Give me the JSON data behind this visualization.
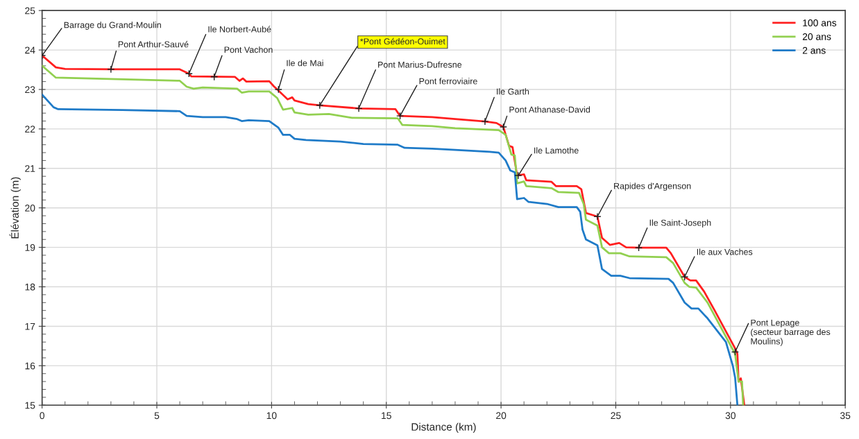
{
  "chart_data": {
    "type": "line",
    "xlabel": "Distance (km)",
    "ylabel": "Élévation (m)",
    "xlim": [
      0,
      35
    ],
    "xticks": [
      0,
      5,
      10,
      15,
      20,
      25,
      30,
      35
    ],
    "ylim": [
      15,
      25
    ],
    "yticks": [
      15,
      16,
      17,
      18,
      19,
      20,
      21,
      22,
      23,
      24,
      25
    ],
    "grid": true,
    "legend": "top right",
    "marker": "none",
    "line_style": "solid",
    "series": [
      {
        "name": "100 ans",
        "color": "#ff1f1f",
        "x": [
          0,
          0.6,
          1.0,
          3.0,
          6.0,
          6.4,
          6.5,
          8.4,
          8.6,
          8.75,
          8.9,
          9.9,
          10.1,
          10.25,
          10.7,
          10.9,
          11.0,
          11.6,
          12.1,
          13.8,
          15.4,
          15.6,
          17.0,
          18.0,
          19.3,
          19.8,
          20.1,
          20.35,
          20.5,
          20.7,
          21.0,
          21.1,
          22.2,
          22.4,
          23.3,
          23.5,
          23.7,
          24.2,
          24.4,
          24.75,
          25.15,
          25.45,
          26.0,
          27.2,
          27.4,
          28.0,
          28.25,
          28.5,
          28.85,
          29.3,
          30.2,
          30.3,
          30.35,
          30.45,
          30.6
        ],
        "values": [
          23.86,
          23.56,
          23.52,
          23.51,
          23.51,
          23.4,
          23.33,
          23.32,
          23.22,
          23.28,
          23.2,
          23.21,
          23.08,
          23.0,
          22.75,
          22.8,
          22.72,
          22.63,
          22.6,
          22.52,
          22.5,
          22.33,
          22.3,
          22.25,
          22.19,
          22.15,
          22.05,
          21.57,
          21.54,
          20.82,
          20.85,
          20.7,
          20.66,
          20.55,
          20.55,
          20.47,
          19.87,
          19.78,
          19.24,
          19.06,
          19.11,
          19.0,
          18.99,
          18.99,
          18.85,
          18.25,
          18.16,
          18.16,
          17.88,
          17.41,
          16.44,
          16.3,
          15.6,
          15.68,
          15.0
        ]
      },
      {
        "name": "20 ans",
        "color": "#92d050",
        "x": [
          0,
          0.6,
          6.0,
          6.3,
          6.6,
          7.0,
          8.5,
          8.7,
          9.0,
          9.9,
          10.25,
          10.5,
          10.9,
          11.0,
          11.6,
          12.5,
          13.5,
          15.5,
          15.7,
          17.0,
          18.0,
          19.9,
          20.2,
          20.45,
          20.6,
          20.7,
          21.0,
          21.1,
          22.2,
          22.5,
          23.4,
          23.6,
          23.7,
          24.2,
          24.4,
          24.7,
          25.2,
          25.6,
          27.2,
          27.5,
          28.0,
          28.2,
          28.5,
          29.0,
          30.2,
          30.35,
          30.5,
          30.55
        ],
        "values": [
          23.6,
          23.3,
          23.22,
          23.07,
          23.02,
          23.05,
          23.02,
          22.92,
          22.95,
          22.95,
          22.78,
          22.49,
          22.53,
          22.42,
          22.36,
          22.38,
          22.28,
          22.27,
          22.1,
          22.07,
          22.02,
          21.97,
          21.85,
          21.35,
          21.33,
          20.62,
          20.67,
          20.55,
          20.5,
          20.4,
          20.38,
          20.1,
          19.7,
          19.55,
          19.0,
          18.85,
          18.85,
          18.77,
          18.75,
          18.6,
          18.1,
          18.0,
          17.98,
          17.6,
          16.3,
          15.6,
          15.6,
          15.0
        ]
      },
      {
        "name": "2 ans",
        "color": "#1f7bc8",
        "x": [
          0,
          0.5,
          0.7,
          3.5,
          6.0,
          6.3,
          7.0,
          8.0,
          8.5,
          8.7,
          9.0,
          9.9,
          10.3,
          10.5,
          10.8,
          11.0,
          11.5,
          13.0,
          14.0,
          15.5,
          15.8,
          17.0,
          18.0,
          19.5,
          19.9,
          20.2,
          20.4,
          20.6,
          20.7,
          21.0,
          21.2,
          22.0,
          22.5,
          23.3,
          23.45,
          23.55,
          23.7,
          24.2,
          24.4,
          24.8,
          25.2,
          25.6,
          27.3,
          27.5,
          28.0,
          28.3,
          28.6,
          29.0,
          29.8,
          30.1,
          30.2,
          30.3
        ],
        "values": [
          22.87,
          22.55,
          22.5,
          22.48,
          22.45,
          22.33,
          22.3,
          22.3,
          22.25,
          22.2,
          22.22,
          22.2,
          22.03,
          21.85,
          21.85,
          21.75,
          21.72,
          21.68,
          21.62,
          21.6,
          21.52,
          21.5,
          21.47,
          21.42,
          21.4,
          21.2,
          20.95,
          20.9,
          20.22,
          20.25,
          20.15,
          20.1,
          20.02,
          20.02,
          19.9,
          19.45,
          19.2,
          19.05,
          18.45,
          18.28,
          18.28,
          18.22,
          18.2,
          18.1,
          17.6,
          17.45,
          17.45,
          17.2,
          16.6,
          16.0,
          15.7,
          15.0
        ]
      }
    ],
    "annotations": [
      {
        "text": "Barrage du Grand-Moulin",
        "x": 0,
        "y": 23.86
      },
      {
        "text": "Pont Arthur-Sauvé",
        "x": 3.0,
        "y": 23.51
      },
      {
        "text": "Ile Norbert-Aubé",
        "x": 6.4,
        "y": 23.4
      },
      {
        "text": "Pont Vachon",
        "x": 7.5,
        "y": 23.32
      },
      {
        "text": "Ile de Mai",
        "x": 10.3,
        "y": 23.0
      },
      {
        "text": "*Pont Gédéon-Ouimet",
        "x": 12.1,
        "y": 22.6
      },
      {
        "text": "Pont Marius-Dufresne",
        "x": 13.8,
        "y": 22.52
      },
      {
        "text": "Pont ferroviaire",
        "x": 15.6,
        "y": 22.33
      },
      {
        "text": "Ile Garth",
        "x": 19.3,
        "y": 22.19
      },
      {
        "text": "Pont Athanase-David",
        "x": 20.1,
        "y": 22.05
      },
      {
        "text": "Ile Lamothe",
        "x": 20.75,
        "y": 20.82
      },
      {
        "text": "Rapides d'Argenson",
        "x": 24.2,
        "y": 19.78
      },
      {
        "text": "Ile Saint-Joseph",
        "x": 26.0,
        "y": 18.99
      },
      {
        "text": "Ile aux Vaches",
        "x": 28.0,
        "y": 18.25
      },
      {
        "text": "Pont Lepage\n(secteur barrage des\nMoulins)",
        "x": 30.2,
        "y": 16.35
      }
    ]
  }
}
